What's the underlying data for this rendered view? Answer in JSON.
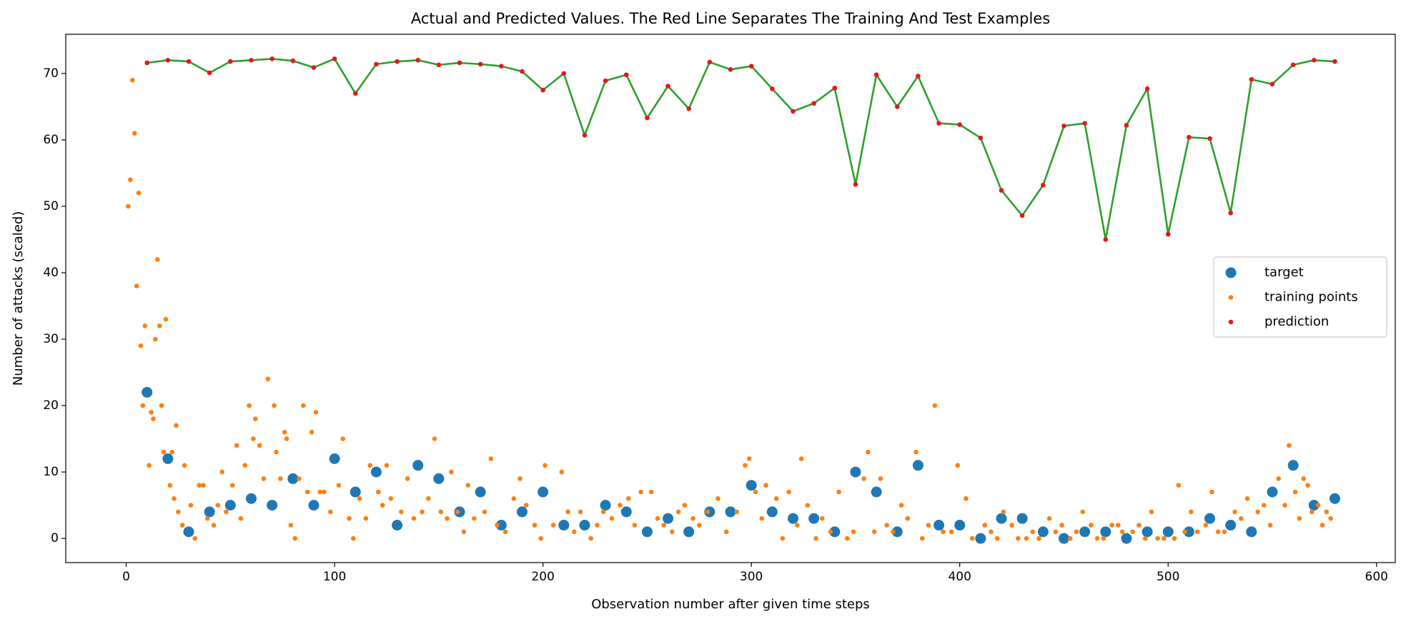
{
  "chart_data": {
    "type": "scatter",
    "title": "Actual and Predicted Values. The Red Line Separates The Training And Test Examples",
    "x_label": "Observation number after given time steps",
    "y_label": "Number of attacks (scaled)",
    "xlim": [
      -29,
      609
    ],
    "ylim": [
      -3.64,
      75.9
    ],
    "xticks": [
      0,
      100,
      200,
      300,
      400,
      500,
      600
    ],
    "yticks": [
      0,
      10,
      20,
      30,
      40,
      50,
      60,
      70
    ],
    "legend": "center right",
    "series": [
      {
        "name": "target",
        "color": "#1f77b4",
        "marker": "large",
        "x": [
          10,
          20,
          30,
          40,
          50,
          60,
          70,
          80,
          90,
          100,
          110,
          120,
          130,
          140,
          150,
          160,
          170,
          180,
          190,
          200,
          210,
          220,
          230,
          240,
          250,
          260,
          270,
          280,
          290,
          300,
          310,
          320,
          330,
          340,
          350,
          360,
          370,
          380,
          390,
          400,
          410,
          420,
          430,
          440,
          450,
          460,
          470,
          480,
          490,
          500,
          510,
          520,
          530,
          540,
          550,
          560,
          570,
          580
        ],
        "values": [
          22,
          12,
          1,
          4,
          5,
          6,
          5,
          9,
          5,
          12,
          7,
          10,
          2,
          11,
          9,
          4,
          7,
          2,
          4,
          7,
          2,
          2,
          5,
          4,
          1,
          3,
          1,
          4,
          4,
          8,
          4,
          3,
          3,
          1,
          10,
          7,
          1,
          11,
          2,
          2,
          0,
          3,
          3,
          1,
          0,
          1,
          1,
          0,
          1,
          1,
          1,
          3,
          2,
          1,
          7,
          11,
          5,
          6
        ]
      },
      {
        "name": "training points",
        "color": "#ff7f0e",
        "marker": "small",
        "x": [
          1,
          2,
          3,
          4,
          5,
          6,
          7,
          8,
          9,
          11,
          12,
          13,
          14,
          15,
          16,
          17,
          18,
          19,
          21,
          22,
          23,
          24,
          25,
          27,
          28,
          31,
          33,
          35,
          37,
          39,
          42,
          44,
          46,
          48,
          51,
          53,
          55,
          57,
          59,
          61,
          62,
          64,
          66,
          68,
          71,
          72,
          74,
          76,
          77,
          79,
          81,
          83,
          85,
          87,
          89,
          91,
          93,
          95,
          98,
          102,
          104,
          107,
          109,
          112,
          115,
          117,
          121,
          123,
          125,
          127,
          132,
          135,
          138,
          142,
          145,
          148,
          151,
          154,
          156,
          159,
          162,
          164,
          167,
          172,
          175,
          178,
          182,
          186,
          189,
          192,
          196,
          199,
          201,
          205,
          209,
          212,
          215,
          218,
          223,
          226,
          229,
          233,
          237,
          241,
          244,
          247,
          252,
          255,
          258,
          262,
          265,
          268,
          272,
          275,
          279,
          284,
          288,
          293,
          297,
          299,
          302,
          305,
          307,
          312,
          315,
          318,
          322,
          324,
          327,
          331,
          334,
          338,
          342,
          346,
          349,
          354,
          356,
          359,
          362,
          365,
          368,
          372,
          375,
          379,
          382,
          385,
          388,
          392,
          396,
          399,
          403,
          406,
          412,
          415,
          418,
          421,
          425,
          428,
          432,
          435,
          438,
          443,
          446,
          449,
          453,
          456,
          459,
          463,
          466,
          469,
          473,
          476,
          478,
          483,
          486,
          489,
          492,
          495,
          498,
          503,
          505,
          508,
          511,
          514,
          518,
          521,
          524,
          527,
          532,
          535,
          538,
          543,
          546,
          549,
          553,
          556,
          558,
          561,
          563,
          565,
          567,
          569,
          572,
          574,
          576,
          578
        ],
        "values": [
          50,
          54,
          69,
          61,
          38,
          52,
          29,
          20,
          32,
          11,
          19,
          18,
          30,
          42,
          32,
          20,
          13,
          33,
          8,
          13,
          6,
          17,
          4,
          2,
          11,
          5,
          0,
          8,
          8,
          3,
          2,
          5,
          10,
          4,
          8,
          14,
          3,
          11,
          20,
          15,
          18,
          14,
          9,
          24,
          20,
          13,
          9,
          16,
          15,
          2,
          0,
          9,
          20,
          7,
          16,
          19,
          7,
          7,
          4,
          8,
          15,
          3,
          0,
          6,
          3,
          11,
          7,
          5,
          11,
          6,
          4,
          9,
          3,
          4,
          6,
          15,
          4,
          3,
          10,
          4,
          1,
          8,
          3,
          4,
          12,
          2,
          1,
          6,
          9,
          5,
          2,
          0,
          11,
          2,
          10,
          4,
          1,
          4,
          0,
          2,
          4,
          3,
          5,
          6,
          2,
          7,
          7,
          3,
          2,
          1,
          4,
          5,
          3,
          2,
          4,
          6,
          1,
          4,
          11,
          12,
          7,
          3,
          8,
          6,
          0,
          7,
          2,
          12,
          5,
          0,
          3,
          1,
          7,
          0,
          1,
          9,
          13,
          1,
          9,
          2,
          1,
          5,
          3,
          13,
          0,
          2,
          20,
          1,
          1,
          11,
          6,
          0,
          2,
          1,
          0,
          4,
          2,
          0,
          0,
          1,
          0,
          3,
          1,
          2,
          0,
          1,
          4,
          2,
          0,
          0,
          2,
          2,
          1,
          1,
          2,
          0,
          4,
          0,
          0,
          0,
          8,
          1,
          4,
          1,
          2,
          7,
          1,
          1,
          4,
          3,
          6,
          4,
          5,
          2,
          9,
          5,
          14,
          7,
          3,
          9,
          8,
          4,
          5,
          2,
          4,
          3
        ]
      },
      {
        "name": "prediction",
        "color": "#e8161b",
        "line_color": "#2ca02c",
        "marker": "small",
        "x": [
          10,
          20,
          30,
          40,
          50,
          60,
          70,
          80,
          90,
          100,
          110,
          120,
          130,
          140,
          150,
          160,
          170,
          180,
          190,
          200,
          210,
          220,
          230,
          240,
          250,
          260,
          270,
          280,
          290,
          300,
          310,
          320,
          330,
          340,
          350,
          360,
          370,
          380,
          390,
          400,
          410,
          420,
          430,
          440,
          450,
          460,
          470,
          480,
          490,
          500,
          510,
          520,
          530,
          540,
          550,
          560,
          570,
          580
        ],
        "values": [
          71.6,
          72,
          71.8,
          70.1,
          71.8,
          72,
          72.2,
          71.9,
          70.9,
          72.2,
          67,
          71.4,
          71.8,
          72,
          71.3,
          71.6,
          71.4,
          71.1,
          70.3,
          67.5,
          70,
          60.7,
          68.9,
          69.8,
          63.3,
          68.1,
          64.7,
          71.7,
          70.6,
          71.1,
          67.7,
          64.3,
          65.5,
          67.8,
          53.3,
          69.8,
          65,
          69.6,
          62.5,
          62.3,
          60.3,
          52.4,
          48.6,
          53.2,
          62.1,
          62.5,
          45,
          62.2,
          67.7,
          45.8,
          60.4,
          60.2,
          49,
          69.1,
          68.4,
          71.3,
          72,
          71.8
        ]
      }
    ]
  }
}
